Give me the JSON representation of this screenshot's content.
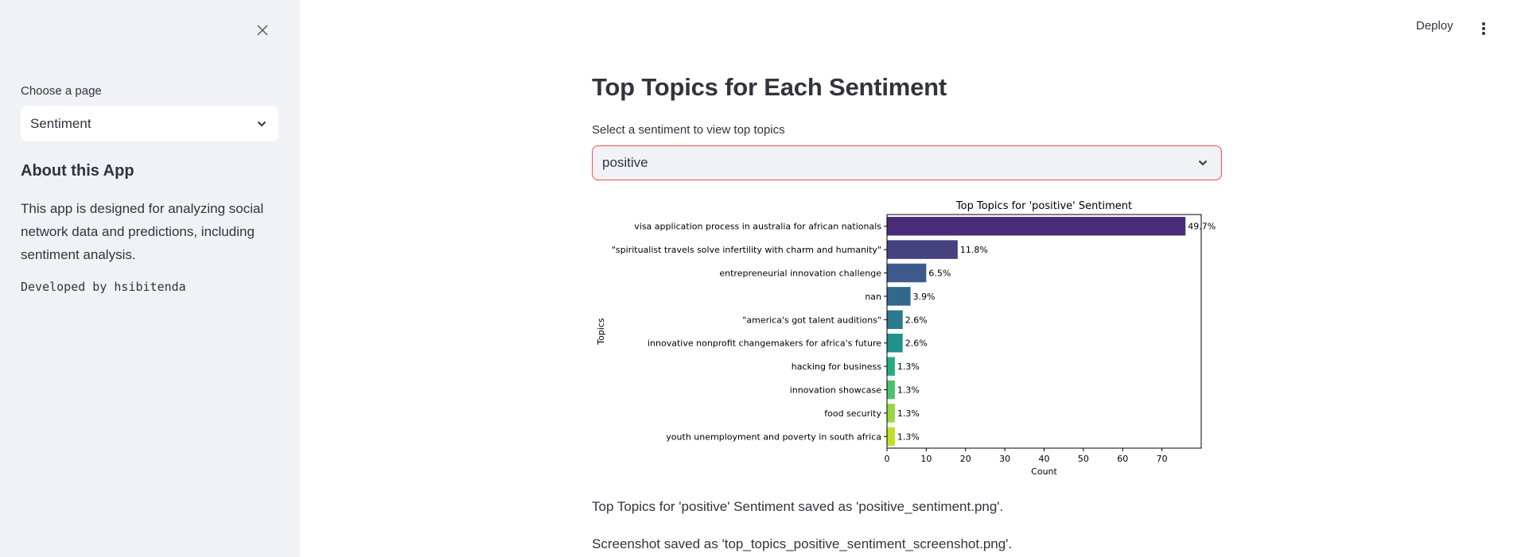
{
  "sidebar": {
    "choose_label": "Choose a page",
    "page_select_value": "Sentiment",
    "about_title": "About this App",
    "about_text": "This app is designed for analyzing social network data and predictions, including sentiment analysis.",
    "developer": "Developed by hsibitenda"
  },
  "header": {
    "deploy_label": "Deploy"
  },
  "main": {
    "title": "Top Topics for Each Sentiment",
    "select_label": "Select a sentiment to view top topics",
    "sentiment_value": "positive",
    "saved_msg": "Top Topics for 'positive' Sentiment saved as 'positive_sentiment.png'.",
    "screenshot_msg": "Screenshot saved as 'top_topics_positive_sentiment_screenshot.png'."
  },
  "chart_data": {
    "type": "bar",
    "orientation": "horizontal",
    "title": "Top Topics for 'positive' Sentiment",
    "xlabel": "Count",
    "ylabel": "Topics",
    "xlim": [
      0,
      80
    ],
    "xticks": [
      0,
      10,
      20,
      30,
      40,
      50,
      60,
      70
    ],
    "categories": [
      "visa application process in australia for african nationals",
      "\"spiritualist travels solve infertility with charm and humanity\"",
      "entrepreneurial innovation challenge",
      "nan",
      "\"america's got talent auditions\"",
      "innovative nonprofit changemakers for africa's future",
      "hacking for business",
      "innovation showcase",
      "food security",
      "youth unemployment and poverty in south africa"
    ],
    "values": [
      76,
      18,
      10,
      6,
      4,
      4,
      2,
      2,
      2,
      2
    ],
    "data_labels": [
      "49.7%",
      "11.8%",
      "6.5%",
      "3.9%",
      "2.6%",
      "2.6%",
      "1.3%",
      "1.3%",
      "1.3%",
      "1.3%"
    ],
    "colors": [
      "#472C7A",
      "#46427F",
      "#3E5A8C",
      "#33688D",
      "#2A788E",
      "#20928C",
      "#25AB82",
      "#4CC26C",
      "#95D840",
      "#C2DF23"
    ],
    "grid": false
  }
}
